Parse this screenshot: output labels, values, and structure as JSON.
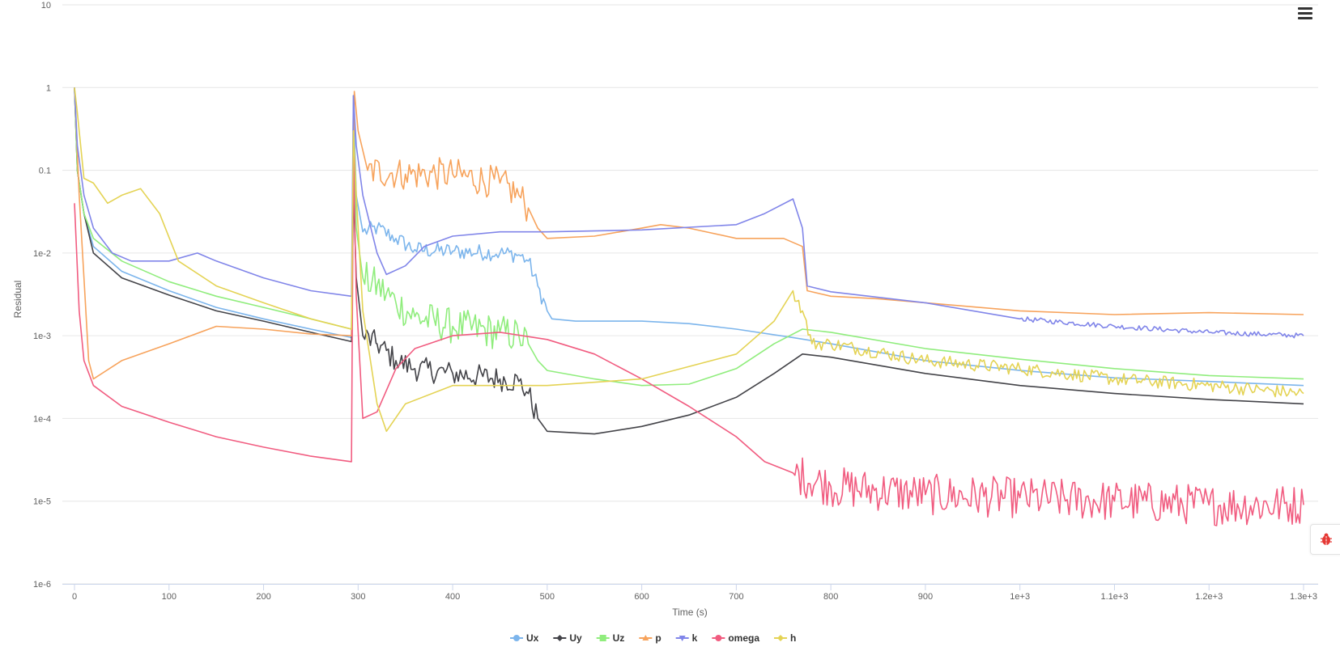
{
  "chart_data": {
    "type": "line",
    "title": "",
    "xlabel": "Time (s)",
    "ylabel": "Residual",
    "yscale": "log",
    "xlim": [
      0,
      1300
    ],
    "ylim": [
      1e-06,
      10
    ],
    "grid": true,
    "legend": "bottom-center",
    "x_ticks": [
      {
        "value": 0,
        "label": "0"
      },
      {
        "value": 100,
        "label": "100"
      },
      {
        "value": 200,
        "label": "200"
      },
      {
        "value": 300,
        "label": "300"
      },
      {
        "value": 400,
        "label": "400"
      },
      {
        "value": 500,
        "label": "500"
      },
      {
        "value": 600,
        "label": "600"
      },
      {
        "value": 700,
        "label": "700"
      },
      {
        "value": 800,
        "label": "800"
      },
      {
        "value": 900,
        "label": "900"
      },
      {
        "value": 1000,
        "label": "1e+3"
      },
      {
        "value": 1100,
        "label": "1.1e+3"
      },
      {
        "value": 1200,
        "label": "1.2e+3"
      },
      {
        "value": 1300,
        "label": "1.3e+3"
      }
    ],
    "y_ticks": [
      {
        "value": 10,
        "label": "10"
      },
      {
        "value": 1,
        "label": "1"
      },
      {
        "value": 0.1,
        "label": "0.1"
      },
      {
        "value": 0.01,
        "label": "1e-2"
      },
      {
        "value": 0.001,
        "label": "1e-3"
      },
      {
        "value": 0.0001,
        "label": "1e-4"
      },
      {
        "value": 1e-05,
        "label": "1e-5"
      },
      {
        "value": 1e-06,
        "label": "1e-6"
      }
    ],
    "series": [
      {
        "name": "Ux",
        "color": "#7cb5ec",
        "marker": "circle",
        "points": [
          [
            0,
            1
          ],
          [
            3,
            0.1
          ],
          [
            10,
            0.03
          ],
          [
            20,
            0.012
          ],
          [
            50,
            0.006
          ],
          [
            100,
            0.0035
          ],
          [
            150,
            0.0022
          ],
          [
            200,
            0.0016
          ],
          [
            250,
            0.0012
          ],
          [
            293,
            0.00095
          ],
          [
            295,
            0.8
          ],
          [
            298,
            0.05
          ],
          [
            305,
            0.018
          ],
          [
            320,
            0.02
          ],
          [
            340,
            0.015
          ],
          [
            360,
            0.011
          ],
          [
            400,
            0.0105
          ],
          [
            450,
            0.01
          ],
          [
            470,
            0.0095
          ],
          [
            480,
            0.008
          ],
          [
            490,
            0.004
          ],
          [
            500,
            0.002
          ],
          [
            505,
            0.0016
          ],
          [
            530,
            0.0015
          ],
          [
            600,
            0.0015
          ],
          [
            650,
            0.0014
          ],
          [
            700,
            0.0012
          ],
          [
            760,
            0.00095
          ],
          [
            800,
            0.0008
          ],
          [
            900,
            0.0005
          ],
          [
            1000,
            0.00038
          ],
          [
            1100,
            0.00031
          ],
          [
            1200,
            0.00028
          ],
          [
            1300,
            0.00025
          ]
        ],
        "noise": [
          [
            300,
            500,
            0.1
          ]
        ]
      },
      {
        "name": "Uy",
        "color": "#434348",
        "marker": "diamond",
        "points": [
          [
            0,
            1
          ],
          [
            3,
            0.1
          ],
          [
            10,
            0.03
          ],
          [
            20,
            0.01
          ],
          [
            50,
            0.005
          ],
          [
            100,
            0.0031
          ],
          [
            150,
            0.002
          ],
          [
            200,
            0.0015
          ],
          [
            250,
            0.0011
          ],
          [
            293,
            0.00085
          ],
          [
            295,
            0.06
          ],
          [
            298,
            0.005
          ],
          [
            305,
            0.001
          ],
          [
            320,
            0.0008
          ],
          [
            340,
            0.0005
          ],
          [
            360,
            0.0004
          ],
          [
            400,
            0.00035
          ],
          [
            450,
            0.0003
          ],
          [
            470,
            0.00028
          ],
          [
            480,
            0.0002
          ],
          [
            490,
            0.0001
          ],
          [
            500,
            7e-05
          ],
          [
            550,
            6.5e-05
          ],
          [
            600,
            8e-05
          ],
          [
            650,
            0.00011
          ],
          [
            700,
            0.00018
          ],
          [
            740,
            0.00035
          ],
          [
            770,
            0.0006
          ],
          [
            800,
            0.00055
          ],
          [
            900,
            0.00035
          ],
          [
            1000,
            0.00025
          ],
          [
            1100,
            0.0002
          ],
          [
            1200,
            0.00017
          ],
          [
            1300,
            0.00015
          ]
        ],
        "noise": [
          [
            300,
            490,
            0.15
          ]
        ]
      },
      {
        "name": "Uz",
        "color": "#90ed7d",
        "marker": "square",
        "points": [
          [
            0,
            1
          ],
          [
            3,
            0.1
          ],
          [
            10,
            0.03
          ],
          [
            20,
            0.015
          ],
          [
            50,
            0.008
          ],
          [
            100,
            0.0045
          ],
          [
            150,
            0.003
          ],
          [
            200,
            0.0022
          ],
          [
            250,
            0.0016
          ],
          [
            293,
            0.0012
          ],
          [
            295,
            0.3
          ],
          [
            298,
            0.02
          ],
          [
            305,
            0.005
          ],
          [
            320,
            0.004
          ],
          [
            340,
            0.0025
          ],
          [
            360,
            0.0017
          ],
          [
            400,
            0.0013
          ],
          [
            450,
            0.0011
          ],
          [
            470,
            0.001
          ],
          [
            480,
            0.0008
          ],
          [
            490,
            0.0005
          ],
          [
            500,
            0.00038
          ],
          [
            550,
            0.0003
          ],
          [
            600,
            0.00025
          ],
          [
            650,
            0.00026
          ],
          [
            700,
            0.0004
          ],
          [
            740,
            0.0008
          ],
          [
            770,
            0.0012
          ],
          [
            800,
            0.0011
          ],
          [
            900,
            0.0007
          ],
          [
            1000,
            0.00052
          ],
          [
            1100,
            0.0004
          ],
          [
            1200,
            0.00033
          ],
          [
            1300,
            0.0003
          ]
        ],
        "noise": [
          [
            305,
            480,
            0.22
          ]
        ]
      },
      {
        "name": "p",
        "color": "#f7a35c",
        "marker": "triangle",
        "points": [
          [
            0,
            1
          ],
          [
            5,
            0.05
          ],
          [
            10,
            0.005
          ],
          [
            15,
            0.0005
          ],
          [
            20,
            0.0003
          ],
          [
            50,
            0.0005
          ],
          [
            100,
            0.0008
          ],
          [
            150,
            0.0013
          ],
          [
            200,
            0.0012
          ],
          [
            250,
            0.00105
          ],
          [
            293,
            0.001
          ],
          [
            296,
            0.9
          ],
          [
            300,
            0.3
          ],
          [
            310,
            0.1
          ],
          [
            350,
            0.09
          ],
          [
            400,
            0.09
          ],
          [
            450,
            0.07
          ],
          [
            470,
            0.05
          ],
          [
            480,
            0.035
          ],
          [
            490,
            0.02
          ],
          [
            500,
            0.015
          ],
          [
            550,
            0.016
          ],
          [
            600,
            0.02
          ],
          [
            620,
            0.022
          ],
          [
            650,
            0.02
          ],
          [
            700,
            0.015
          ],
          [
            750,
            0.015
          ],
          [
            770,
            0.012
          ],
          [
            775,
            0.0035
          ],
          [
            800,
            0.003
          ],
          [
            850,
            0.0028
          ],
          [
            900,
            0.0025
          ],
          [
            1000,
            0.002
          ],
          [
            1100,
            0.0018
          ],
          [
            1200,
            0.0019
          ],
          [
            1300,
            0.0018
          ]
        ],
        "noise": [
          [
            305,
            480,
            0.2
          ]
        ]
      },
      {
        "name": "k",
        "color": "#8085e9",
        "marker": "triangle-down",
        "points": [
          [
            0,
            1
          ],
          [
            3,
            0.2
          ],
          [
            10,
            0.05
          ],
          [
            20,
            0.02
          ],
          [
            40,
            0.01
          ],
          [
            60,
            0.008
          ],
          [
            100,
            0.008
          ],
          [
            130,
            0.01
          ],
          [
            150,
            0.008
          ],
          [
            200,
            0.005
          ],
          [
            250,
            0.0035
          ],
          [
            293,
            0.003
          ],
          [
            295,
            0.8
          ],
          [
            298,
            0.2
          ],
          [
            305,
            0.05
          ],
          [
            320,
            0.01
          ],
          [
            330,
            0.0055
          ],
          [
            350,
            0.007
          ],
          [
            370,
            0.012
          ],
          [
            400,
            0.016
          ],
          [
            450,
            0.018
          ],
          [
            500,
            0.018
          ],
          [
            600,
            0.019
          ],
          [
            700,
            0.022
          ],
          [
            730,
            0.03
          ],
          [
            760,
            0.045
          ],
          [
            770,
            0.02
          ],
          [
            775,
            0.004
          ],
          [
            800,
            0.0034
          ],
          [
            900,
            0.0025
          ],
          [
            1000,
            0.0016
          ],
          [
            1100,
            0.0013
          ],
          [
            1200,
            0.0011
          ],
          [
            1300,
            0.001
          ]
        ],
        "noise": [
          [
            1000,
            1300,
            0.03
          ]
        ]
      },
      {
        "name": "omega",
        "color": "#f15c80",
        "marker": "circle",
        "points": [
          [
            0,
            0.04
          ],
          [
            5,
            0.002
          ],
          [
            10,
            0.0005
          ],
          [
            20,
            0.00025
          ],
          [
            50,
            0.00014
          ],
          [
            100,
            9e-05
          ],
          [
            150,
            6e-05
          ],
          [
            200,
            4.5e-05
          ],
          [
            250,
            3.5e-05
          ],
          [
            293,
            3e-05
          ],
          [
            295,
            0.18
          ],
          [
            298,
            0.003
          ],
          [
            305,
            0.0001
          ],
          [
            320,
            0.00012
          ],
          [
            340,
            0.0004
          ],
          [
            360,
            0.0007
          ],
          [
            400,
            0.001
          ],
          [
            450,
            0.0011
          ],
          [
            500,
            0.0009
          ],
          [
            550,
            0.0006
          ],
          [
            600,
            0.0003
          ],
          [
            650,
            0.00014
          ],
          [
            700,
            6e-05
          ],
          [
            730,
            3e-05
          ],
          [
            760,
            2.2e-05
          ],
          [
            800,
            1.5e-05
          ],
          [
            900,
            1.2e-05
          ],
          [
            1000,
            1.1e-05
          ],
          [
            1100,
            1e-05
          ],
          [
            1200,
            9e-06
          ],
          [
            1300,
            9e-06
          ]
        ],
        "noise": [
          [
            750,
            1300,
            0.25
          ]
        ]
      },
      {
        "name": "h",
        "color": "#e4d354",
        "marker": "diamond",
        "points": [
          [
            0,
            1
          ],
          [
            3,
            0.5
          ],
          [
            10,
            0.08
          ],
          [
            20,
            0.07
          ],
          [
            35,
            0.04
          ],
          [
            50,
            0.05
          ],
          [
            70,
            0.06
          ],
          [
            90,
            0.03
          ],
          [
            110,
            0.008
          ],
          [
            150,
            0.004
          ],
          [
            200,
            0.0025
          ],
          [
            250,
            0.0016
          ],
          [
            293,
            0.0012
          ],
          [
            295,
            0.3
          ],
          [
            298,
            0.05
          ],
          [
            305,
            0.002
          ],
          [
            320,
            0.00015
          ],
          [
            330,
            7e-05
          ],
          [
            350,
            0.00015
          ],
          [
            400,
            0.00025
          ],
          [
            500,
            0.00025
          ],
          [
            600,
            0.0003
          ],
          [
            700,
            0.0006
          ],
          [
            740,
            0.0015
          ],
          [
            760,
            0.0035
          ],
          [
            770,
            0.002
          ],
          [
            780,
            0.0008
          ],
          [
            800,
            0.0008
          ],
          [
            900,
            0.0005
          ],
          [
            1000,
            0.0004
          ],
          [
            1100,
            0.0003
          ],
          [
            1200,
            0.00025
          ],
          [
            1300,
            0.0002
          ]
        ],
        "noise": [
          [
            760,
            1300,
            0.08
          ]
        ]
      }
    ]
  }
}
